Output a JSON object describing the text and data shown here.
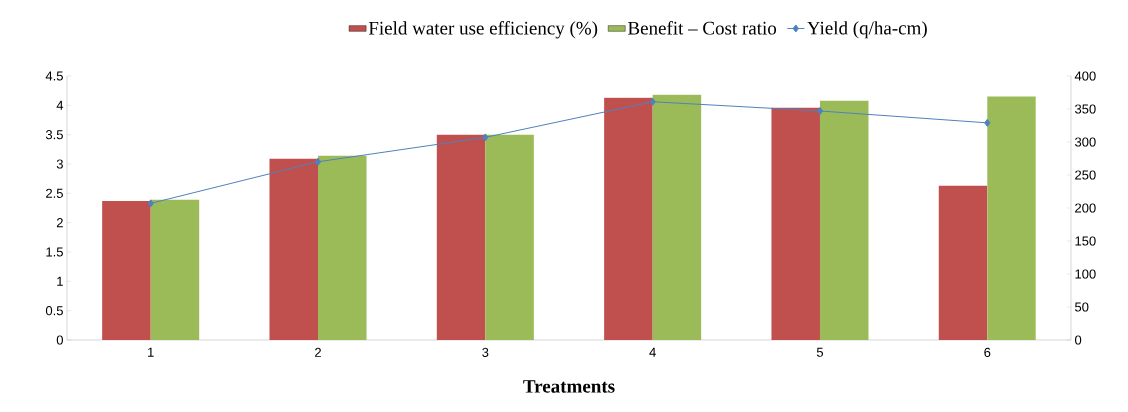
{
  "chart_data": {
    "type": "bar",
    "xlabel": "Treatments",
    "categories": [
      "1",
      "2",
      "3",
      "4",
      "5",
      "6"
    ],
    "series": [
      {
        "name": "Field water use efficiency (%)",
        "color": "#c0504d",
        "values": [
          2.37,
          3.09,
          3.5,
          4.13,
          3.96,
          2.63
        ]
      },
      {
        "name": "Benefit – Cost ratio",
        "color": "#9bbb59",
        "values": [
          2.39,
          3.14,
          3.5,
          4.18,
          4.08,
          4.15
        ]
      },
      {
        "name": "Yield (q/ha-cm)",
        "type": "line",
        "axis": "y2",
        "marker": "diamond",
        "color": "#4f81bd",
        "values": [
          207,
          270,
          307,
          361,
          347,
          329
        ]
      }
    ],
    "ylim": [
      0,
      4.5
    ],
    "yticks": [
      0,
      0.5,
      1,
      1.5,
      2,
      2.5,
      3,
      3.5,
      4,
      4.5
    ],
    "y2lim": [
      0,
      400
    ],
    "y2ticks": [
      0,
      50,
      100,
      150,
      200,
      250,
      300,
      350,
      400
    ],
    "legend": "top"
  }
}
